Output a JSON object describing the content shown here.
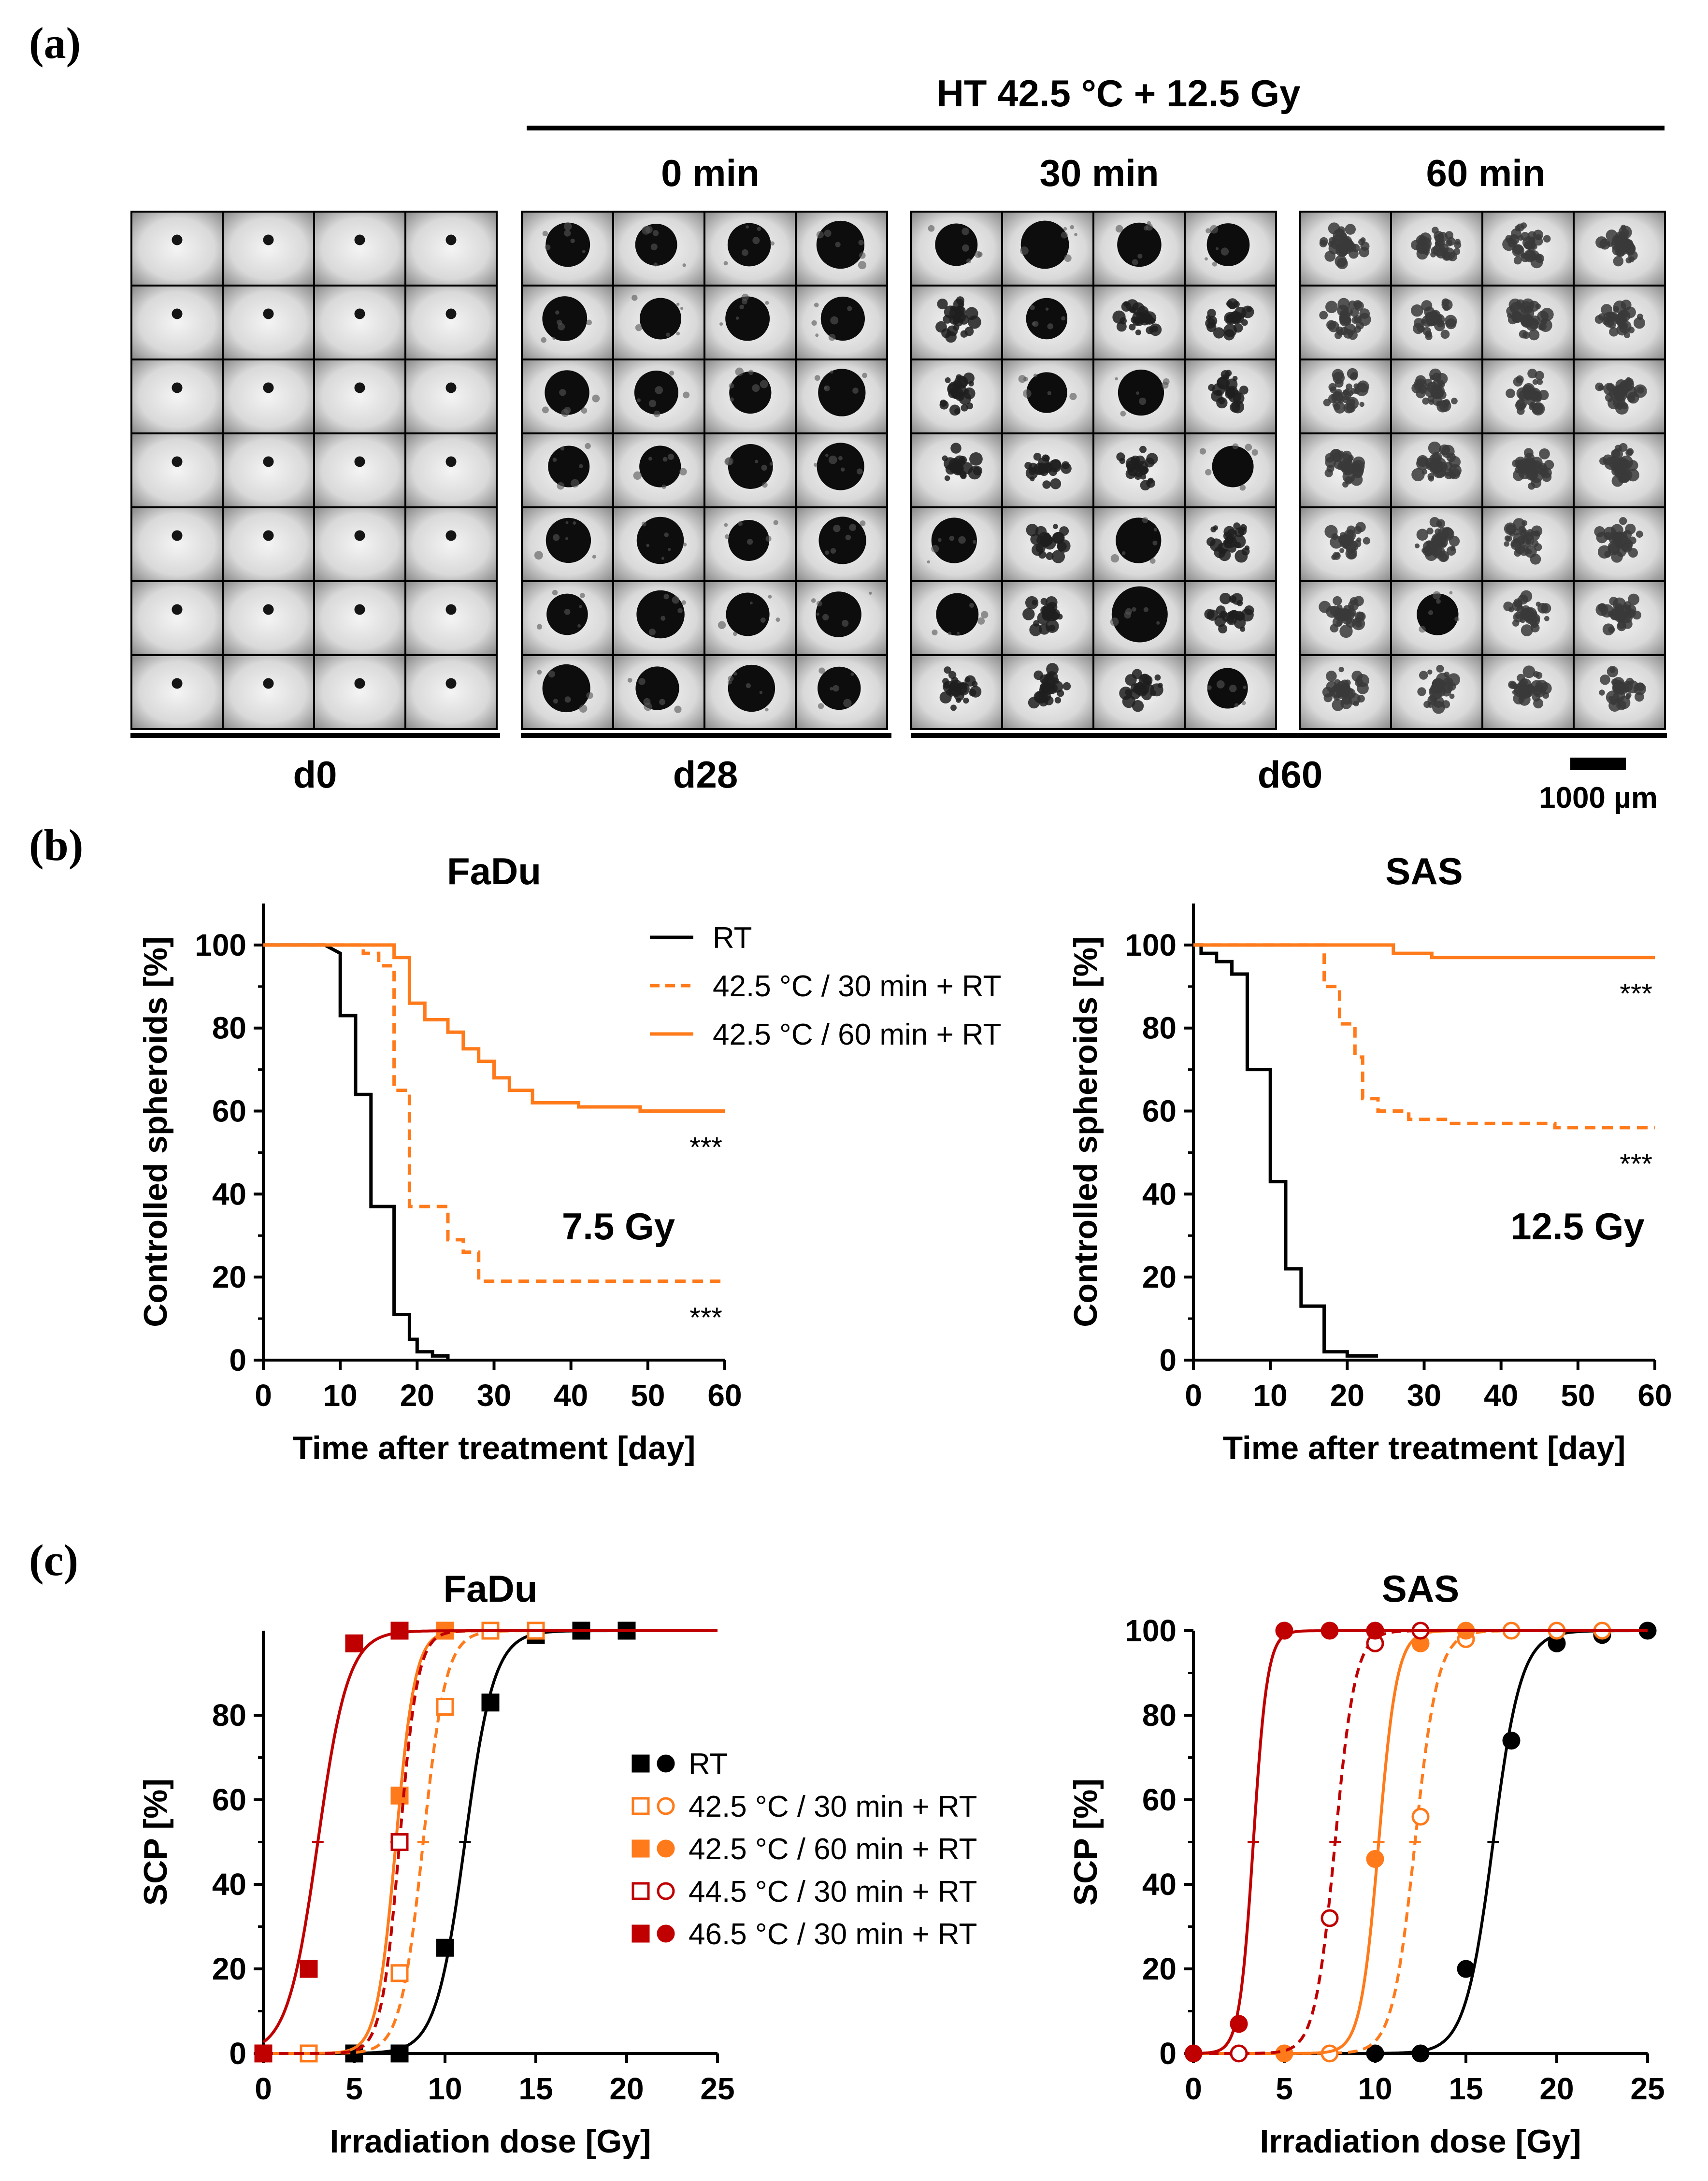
{
  "panels": {
    "a": {
      "label": "(a)",
      "treatment_header": "HT 42.5 °C + 12.5 Gy",
      "group_headers": [
        "0 min",
        "30 min",
        "60 min"
      ],
      "day_labels": [
        "d0",
        "d28",
        "d60"
      ],
      "scale_bar_label": "1000 µm",
      "grid": {
        "rows": 7,
        "cols": 4,
        "panels": 4
      }
    },
    "b": {
      "label": "(b)"
    },
    "c": {
      "label": "(c)"
    }
  },
  "colors": {
    "rt": "#000000",
    "ht_42_5_30": "#ff7a1a",
    "ht_42_5_60": "#ff7a1a",
    "ht_44_5_30": "#c00000",
    "ht_46_5_30": "#c00000"
  },
  "legend_b": [
    {
      "label": "RT",
      "style": "solid",
      "color": "#000000"
    },
    {
      "label": "42.5 °C / 30 min + RT",
      "style": "dashed",
      "color": "#ff7a1a"
    },
    {
      "label": "42.5 °C / 60 min + RT",
      "style": "solid",
      "color": "#ff7a1a"
    }
  ],
  "legend_c": [
    {
      "label": "RT",
      "color": "#000000",
      "filled": true,
      "dashed": false
    },
    {
      "label": "42.5 °C / 30 min + RT",
      "color": "#ff7a1a",
      "filled": false,
      "dashed": true
    },
    {
      "label": "42.5 °C / 60 min + RT",
      "color": "#ff7a1a",
      "filled": true,
      "dashed": false
    },
    {
      "label": "44.5 °C / 30 min + RT",
      "color": "#c00000",
      "filled": false,
      "dashed": true
    },
    {
      "label": "46.5 °C / 30 min + RT",
      "color": "#c00000",
      "filled": true,
      "dashed": false
    }
  ],
  "chart_data": [
    {
      "id": "b_fadu",
      "type": "line",
      "title": "FaDu",
      "xlabel": "Time after treatment [day]",
      "ylabel": "Controlled spheroids [%]",
      "xlim": [
        0,
        60
      ],
      "ylim": [
        0,
        110
      ],
      "xticks": [
        0,
        10,
        20,
        30,
        40,
        50,
        60
      ],
      "yticks": [
        0,
        20,
        40,
        60,
        80,
        100
      ],
      "annotation": "7.5 Gy",
      "series": [
        {
          "name": "RT",
          "style": "solid",
          "color": "#000000",
          "x": [
            0,
            8,
            10,
            10,
            12,
            12,
            14,
            14,
            17,
            17,
            18,
            18,
            19,
            19,
            20,
            20,
            22,
            22,
            24,
            24
          ],
          "y": [
            100,
            100,
            98,
            83,
            83,
            64,
            64,
            37,
            37,
            11,
            11,
            11,
            11,
            5,
            5,
            2,
            2,
            1,
            1,
            0
          ],
          "significance": ""
        },
        {
          "name": "42.5 °C / 30 min + RT",
          "style": "dashed",
          "color": "#ff7a1a",
          "x": [
            0,
            13,
            13,
            15,
            15,
            17,
            17,
            19,
            19,
            24,
            24,
            26,
            26,
            28,
            28,
            60
          ],
          "y": [
            100,
            100,
            98,
            98,
            95,
            95,
            65,
            65,
            37,
            37,
            29,
            29,
            26,
            26,
            19,
            19
          ],
          "significance": "***"
        },
        {
          "name": "42.5 °C / 60 min + RT",
          "style": "solid",
          "color": "#ff7a1a",
          "x": [
            0,
            17,
            17,
            19,
            19,
            21,
            21,
            24,
            24,
            26,
            26,
            28,
            28,
            30,
            30,
            32,
            32,
            35,
            35,
            41,
            41,
            49,
            49,
            60
          ],
          "y": [
            100,
            100,
            97,
            97,
            86,
            86,
            82,
            82,
            79,
            79,
            75,
            75,
            72,
            72,
            68,
            68,
            65,
            65,
            62,
            62,
            61,
            61,
            60,
            60
          ],
          "significance": "***"
        }
      ]
    },
    {
      "id": "b_sas",
      "type": "line",
      "title": "SAS",
      "xlabel": "Time after treatment [day]",
      "ylabel": "Controlled spheroids [%]",
      "xlim": [
        0,
        60
      ],
      "ylim": [
        0,
        110
      ],
      "xticks": [
        0,
        10,
        20,
        30,
        40,
        50,
        60
      ],
      "yticks": [
        0,
        20,
        40,
        60,
        80,
        100
      ],
      "annotation": "12.5 Gy",
      "series": [
        {
          "name": "RT",
          "style": "solid",
          "color": "#000000",
          "x": [
            0,
            1,
            1,
            3,
            3,
            5,
            5,
            7,
            7,
            10,
            10,
            12,
            12,
            14,
            14,
            17,
            17,
            20,
            20,
            24
          ],
          "y": [
            100,
            100,
            98,
            98,
            96,
            96,
            93,
            93,
            70,
            70,
            43,
            43,
            22,
            22,
            13,
            13,
            2,
            2,
            1,
            1
          ],
          "significance": ""
        },
        {
          "name": "42.5 °C / 30 min + RT",
          "style": "dashed",
          "color": "#ff7a1a",
          "x": [
            0,
            17,
            17,
            19,
            19,
            21,
            21,
            22,
            22,
            24,
            24,
            28,
            28,
            33,
            33,
            47,
            47,
            60
          ],
          "y": [
            100,
            100,
            90,
            90,
            81,
            81,
            73,
            73,
            63,
            63,
            60,
            60,
            58,
            58,
            57,
            57,
            56,
            56
          ],
          "significance": "***"
        },
        {
          "name": "42.5 °C / 60 min + RT",
          "style": "solid",
          "color": "#ff7a1a",
          "x": [
            0,
            26,
            26,
            31,
            31,
            60
          ],
          "y": [
            100,
            100,
            98,
            98,
            97,
            97
          ],
          "significance": "***"
        }
      ]
    },
    {
      "id": "c_fadu",
      "type": "scatter",
      "title": "FaDu",
      "xlabel": "Irradiation dose [Gy]",
      "ylabel": "SCP [%]",
      "xlim": [
        0,
        25
      ],
      "ylim": [
        0,
        100
      ],
      "xticks": [
        0,
        5,
        10,
        15,
        20,
        25
      ],
      "yticks": [
        0,
        20,
        40,
        60,
        80
      ],
      "series": [
        {
          "name": "RT",
          "color": "#000000",
          "marker": "square",
          "filled": true,
          "dashed": false,
          "td50": 11.1,
          "slope": 1.25,
          "x": [
            0,
            5,
            7.5,
            10,
            12.5,
            15,
            17.5,
            20
          ],
          "y": [
            0,
            0,
            0,
            25,
            83,
            99,
            100,
            100
          ]
        },
        {
          "name": "42.5 °C / 30 min + RT",
          "color": "#ff7a1a",
          "marker": "square",
          "filled": false,
          "dashed": true,
          "td50": 8.8,
          "slope": 1.6,
          "x": [
            2.5,
            7.5,
            10,
            12.5,
            15
          ],
          "y": [
            0,
            19,
            82,
            100,
            100
          ]
        },
        {
          "name": "42.5 °C / 60 min + RT",
          "color": "#ff7a1a",
          "marker": "square",
          "filled": true,
          "dashed": false,
          "td50": 7.3,
          "slope": 1.9,
          "x": [
            7.5,
            10
          ],
          "y": [
            61,
            100
          ]
        },
        {
          "name": "44.5 °C / 30 min + RT",
          "color": "#c00000",
          "marker": "square",
          "filled": false,
          "dashed": true,
          "td50": 7.5,
          "slope": 2.0,
          "x": [
            7.5
          ],
          "y": [
            50
          ]
        },
        {
          "name": "46.5 °C / 30 min + RT",
          "color": "#c00000",
          "marker": "square",
          "filled": true,
          "dashed": false,
          "td50": 3.0,
          "slope": 1.2,
          "x": [
            0,
            2.5,
            3.0,
            5,
            7.5
          ],
          "y": [
            0,
            20,
            null,
            97,
            100
          ]
        }
      ]
    },
    {
      "id": "c_sas",
      "type": "scatter",
      "title": "SAS",
      "xlabel": "Irradiation dose [Gy]",
      "ylabel": "SCP [%]",
      "xlim": [
        0,
        25
      ],
      "ylim": [
        0,
        100
      ],
      "xticks": [
        0,
        5,
        10,
        15,
        20,
        25
      ],
      "yticks": [
        0,
        20,
        40,
        60,
        80,
        100
      ],
      "series": [
        {
          "name": "RT",
          "color": "#000000",
          "marker": "circle",
          "filled": true,
          "dashed": false,
          "td50": 16.5,
          "slope": 1.3,
          "x": [
            10,
            12.5,
            15,
            17.5,
            20,
            22.5,
            25
          ],
          "y": [
            0,
            0,
            20,
            74,
            97,
            99,
            100
          ]
        },
        {
          "name": "42.5 °C / 30 min + RT",
          "color": "#ff7a1a",
          "marker": "circle",
          "filled": false,
          "dashed": true,
          "td50": 12.2,
          "slope": 1.6,
          "x": [
            7.5,
            12.5,
            15,
            17.5,
            20,
            22.5
          ],
          "y": [
            0,
            56,
            98,
            100,
            100,
            100
          ]
        },
        {
          "name": "42.5 °C / 60 min + RT",
          "color": "#ff7a1a",
          "marker": "circle",
          "filled": true,
          "dashed": false,
          "td50": 10.2,
          "slope": 2.0,
          "x": [
            5,
            10,
            12.5,
            15
          ],
          "y": [
            0,
            46,
            97,
            100
          ]
        },
        {
          "name": "44.5 °C / 30 min + RT",
          "color": "#c00000",
          "marker": "circle",
          "filled": false,
          "dashed": true,
          "td50": 7.8,
          "slope": 1.8,
          "x": [
            2.5,
            7.5,
            10,
            12.5
          ],
          "y": [
            0,
            32,
            97,
            100
          ]
        },
        {
          "name": "46.5 °C / 30 min + RT",
          "color": "#c00000",
          "marker": "circle",
          "filled": true,
          "dashed": false,
          "td50": 3.3,
          "slope": 2.6,
          "x": [
            0,
            2.5,
            5,
            7.5,
            10
          ],
          "y": [
            0,
            7,
            100,
            100,
            100
          ]
        }
      ]
    }
  ]
}
